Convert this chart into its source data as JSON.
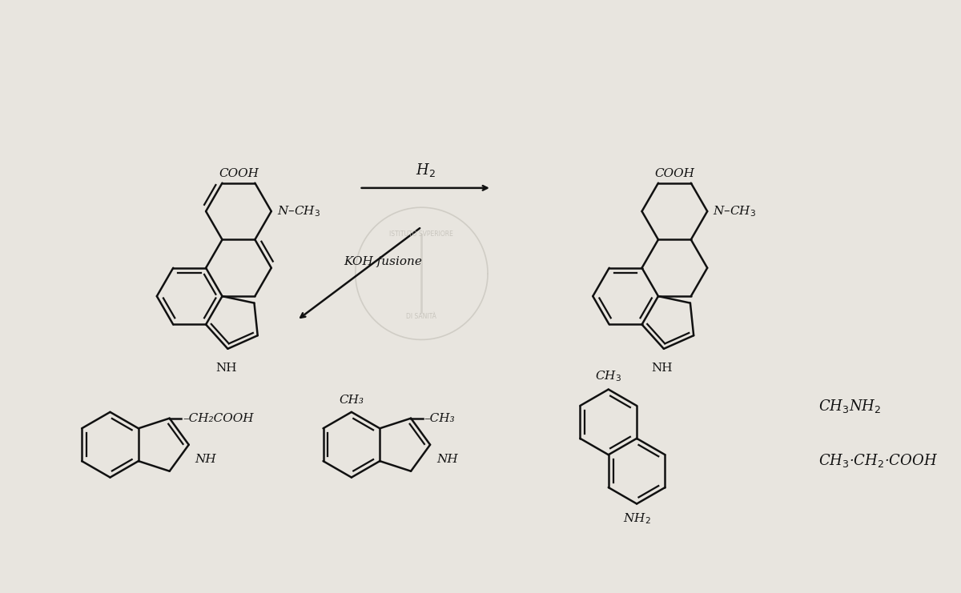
{
  "bg_color": "#e8e5df",
  "line_color": "#111111",
  "text_color": "#111111",
  "arrow_color": "#111111",
  "watermark_color": "#b0b0b0",
  "figsize": [
    12.0,
    7.41
  ],
  "dpi": 100,
  "structures": {
    "top_left_label": "COOH",
    "top_left_nch3": "N–CH₃",
    "top_left_nh": "NH",
    "top_right_label": "COOH",
    "top_right_nch3": "N–CH₃",
    "top_right_nh": "NH",
    "arrow_h2": "H₂",
    "arrow_koh": "KOH fusione",
    "bottom_left_sub": "–CH₂COOH",
    "bottom_left_nh": "NH",
    "bottom_mid_ch3_top": "CH₃",
    "bottom_mid_ch3_side": "–CH₃",
    "bottom_mid_nh": "NH",
    "bottom_right_ch3": "CH₃",
    "bottom_right_nh2": "NH₂",
    "right_text1": "CH₃NH₂",
    "right_text2": "CH₃·CH₂·COOH"
  }
}
